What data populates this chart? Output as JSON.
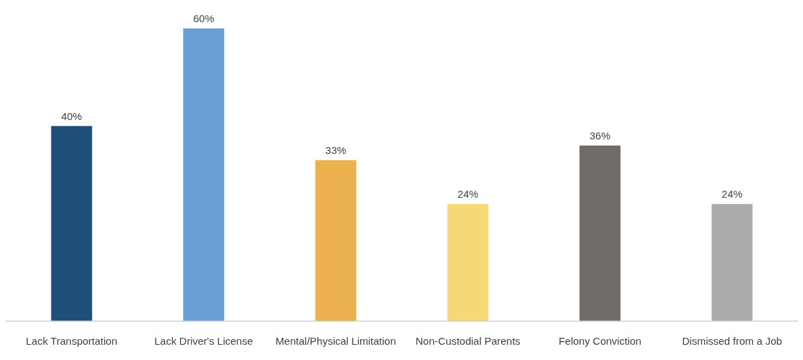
{
  "chart_data": {
    "type": "bar",
    "categories": [
      "Lack Transportation",
      "Lack Driver's License",
      "Mental/Physical Limitation",
      "Non-Custodial Parents",
      "Felony Conviction",
      "Dismissed from a Job"
    ],
    "values": [
      40,
      60,
      33,
      24,
      36,
      24
    ],
    "value_labels": [
      "40%",
      "60%",
      "33%",
      "24%",
      "36%",
      "24%"
    ],
    "colors": [
      "#1f4e7a",
      "#6a9fd3",
      "#ebb14f",
      "#f7d877",
      "#716c6a",
      "#acaaa8"
    ]
  }
}
